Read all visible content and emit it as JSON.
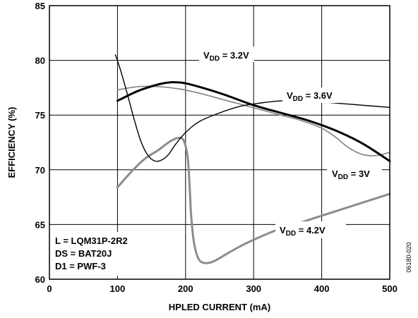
{
  "chart_data": {
    "type": "line",
    "xlabel": "HPLED CURRENT (mA)",
    "ylabel": "EFFICIENCY (%)",
    "xlim": [
      0,
      500
    ],
    "ylim": [
      60,
      85
    ],
    "xticks": [
      "0",
      "100",
      "200",
      "300",
      "400",
      "500"
    ],
    "yticks": [
      "60",
      "65",
      "70",
      "75",
      "80",
      "85"
    ],
    "grid": true,
    "series": [
      {
        "name_main": "V",
        "name_sub": "DD",
        "name_rest": " = 3.2V",
        "color": "#000000",
        "width": 3,
        "x": [
          100,
          130,
          160,
          180,
          200,
          230,
          260,
          300,
          340,
          380,
          420,
          460,
          500
        ],
        "y": [
          76.3,
          77.2,
          77.8,
          78.0,
          77.9,
          77.4,
          76.8,
          75.9,
          75.2,
          74.5,
          73.6,
          72.4,
          70.8
        ]
      },
      {
        "name_main": "V",
        "name_sub": "DD",
        "name_rest": " = 3.6V",
        "color": "#000000",
        "width": 1.4,
        "x": [
          97,
          105,
          115,
          125,
          135,
          145,
          155,
          165,
          175,
          185,
          200,
          220,
          250,
          280,
          310,
          340,
          370,
          400,
          440,
          500
        ],
        "y": [
          80.5,
          79.0,
          76.8,
          74.5,
          72.5,
          71.3,
          70.8,
          70.9,
          71.4,
          72.3,
          73.4,
          74.4,
          75.2,
          75.8,
          76.1,
          76.3,
          76.3,
          76.2,
          76.0,
          75.7
        ]
      },
      {
        "name_main": "V",
        "name_sub": "DD",
        "name_rest": " = 3V",
        "color": "#8c8c8c",
        "width": 1.8,
        "x": [
          100,
          130,
          160,
          190,
          220,
          250,
          280,
          310,
          340,
          370,
          400,
          420,
          440,
          460,
          480,
          500
        ],
        "y": [
          77.3,
          77.6,
          77.6,
          77.4,
          77.0,
          76.5,
          76.0,
          75.5,
          75.0,
          74.5,
          73.8,
          73.0,
          72.0,
          71.4,
          71.3,
          71.6
        ]
      },
      {
        "name_main": "V",
        "name_sub": "DD",
        "name_rest": " = 4.2V",
        "color": "#8c8c8c",
        "width": 3,
        "x": [
          100,
          120,
          140,
          160,
          175,
          188,
          197,
          203,
          206,
          208,
          212,
          218,
          226,
          240,
          260,
          280,
          300,
          330,
          360,
          400,
          440,
          480,
          500
        ],
        "y": [
          68.4,
          69.8,
          71.0,
          71.8,
          72.5,
          72.9,
          72.7,
          71.2,
          68.5,
          66.0,
          63.5,
          62.0,
          61.5,
          61.6,
          62.3,
          63.0,
          63.6,
          64.4,
          65.0,
          65.8,
          66.6,
          67.4,
          67.8
        ]
      }
    ],
    "annotations": [
      {
        "main": "V",
        "sub": "DD",
        "rest": " = 3.2V"
      },
      {
        "main": "V",
        "sub": "DD",
        "rest": " = 3.6V"
      },
      {
        "main": "V",
        "sub": "DD",
        "rest": " = 3V"
      },
      {
        "main": "V",
        "sub": "DD",
        "rest": " = 4.2V"
      }
    ],
    "conditions": [
      "L = LQM31P-2R2",
      "DS = BAT20J",
      "D1 = PWF-3"
    ],
    "figure_id": "06180-020"
  }
}
